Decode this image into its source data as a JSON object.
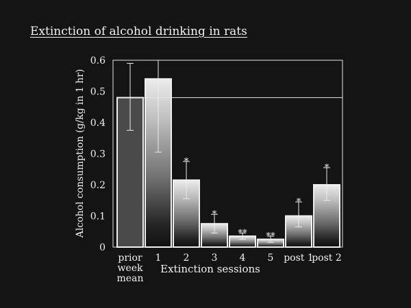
{
  "chart_data": {
    "type": "bar",
    "title": "Extinction of alcohol drinking in rats",
    "xlabel": "Extinction sessions",
    "ylabel": "Alcohol consumption (g/kg in 1 hr)",
    "ylim": [
      0,
      0.6
    ],
    "yticks": [
      "0",
      "0.1",
      "0.2",
      "0.3",
      "0.4",
      "0.5",
      "0.6"
    ],
    "categories": [
      "prior week mean",
      "1",
      "2",
      "3",
      "4",
      "5",
      "post 1",
      "post 2"
    ],
    "category_lines": [
      [
        "prior",
        "week",
        "mean"
      ],
      [
        "1"
      ],
      [
        "2"
      ],
      [
        "3"
      ],
      [
        "4"
      ],
      [
        "5"
      ],
      [
        "post 1"
      ],
      [
        "post 2"
      ]
    ],
    "values": [
      0.48,
      0.54,
      0.215,
      0.075,
      0.035,
      0.025,
      0.1,
      0.2
    ],
    "error_low": [
      0.375,
      0.305,
      0.155,
      0.045,
      0.025,
      0.015,
      0.065,
      0.15
    ],
    "error_high": [
      0.59,
      0.6,
      0.275,
      0.105,
      0.045,
      0.035,
      0.145,
      0.255
    ],
    "significance": [
      "",
      "",
      "*",
      "*",
      "**",
      "**",
      "*",
      "*"
    ],
    "reference_line": 0.48,
    "colors": {
      "background": "#141414",
      "text": "#f2f2f2",
      "baseline_bar": "#4a4a4a"
    }
  }
}
